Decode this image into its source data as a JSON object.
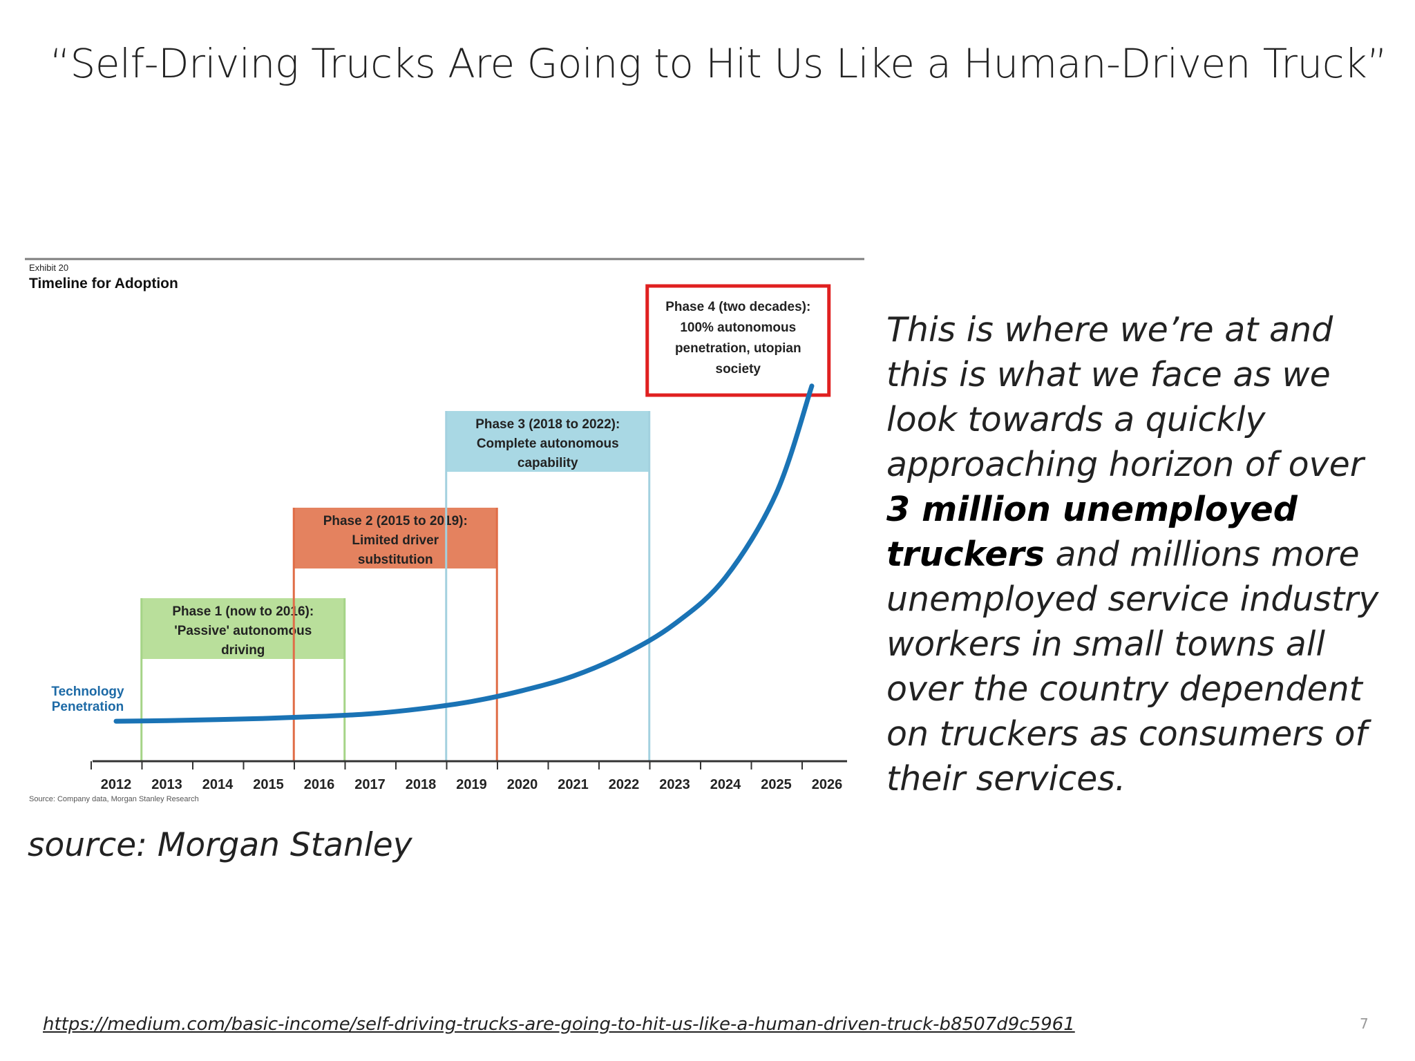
{
  "slide": {
    "title": "“Self-Driving Trucks Are Going to Hit Us Like a Human-Driven Truck”",
    "body": {
      "before": "This is where we’re at and this is what we face as we look towards a quickly approaching horizon of over ",
      "emphasis": "3 million unemployed truckers",
      "after": " and millions more unemployed service industry workers in small towns all over the country dependent on truckers as consumers of their services."
    },
    "source_caption": "source: Morgan Stanley",
    "link": "https://medium.com/basic-income/self-driving-trucks-are-going-to-hit-us-like-a-human-driven-truck-b8507d9c5961",
    "page_number": "7"
  },
  "chart_data": {
    "type": "line",
    "exhibit_label": "Exhibit 20",
    "title": "Timeline for Adoption",
    "source_note": "Source: Company data, Morgan Stanley Research",
    "series": [
      {
        "name": "Technology Penetration",
        "color": "#1a73b5",
        "x": [
          2012,
          2013,
          2014,
          2015,
          2016,
          2017,
          2018,
          2019,
          2020,
          2021,
          2022,
          2023,
          2024,
          2025,
          2025.7
        ],
        "y": [
          0.9,
          1.3,
          2.0,
          2.9,
          4.2,
          6.0,
          9.5,
          14.5,
          22,
          32,
          47,
          68,
          100,
          158,
          232
        ]
      }
    ],
    "x_ticks": [
      "2012",
      "2013",
      "2014",
      "2015",
      "2016",
      "2017",
      "2018",
      "2019",
      "2020",
      "2021",
      "2022",
      "2023",
      "2024",
      "2025",
      "2026"
    ],
    "xlim": [
      2012,
      2026
    ],
    "phases": [
      {
        "lines": [
          "Phase 1 (now to 2016):",
          "'Passive' autonomous",
          "driving"
        ],
        "start": 2012.5,
        "end": 2016.5,
        "fill": "#b9df9b",
        "stroke": "#a5d487"
      },
      {
        "lines": [
          "Phase 2 (2015 to 2019):",
          "Limited driver",
          "substitution"
        ],
        "start": 2015.5,
        "end": 2019.5,
        "fill": "#e4825f",
        "stroke": "#e06d47"
      },
      {
        "lines": [
          "Phase 3 (2018 to 2022):",
          "Complete autonomous",
          "capability"
        ],
        "start": 2018.5,
        "end": 2022.5,
        "fill": "#a9d8e4",
        "stroke": "#a3d1df"
      },
      {
        "lines": [
          "Phase 4 (two decades):",
          "100% autonomous",
          "penetration, utopian",
          "society"
        ],
        "start": 2022.5,
        "end": 2026,
        "fill": "#ffffff",
        "stroke": "#e02020"
      }
    ]
  }
}
